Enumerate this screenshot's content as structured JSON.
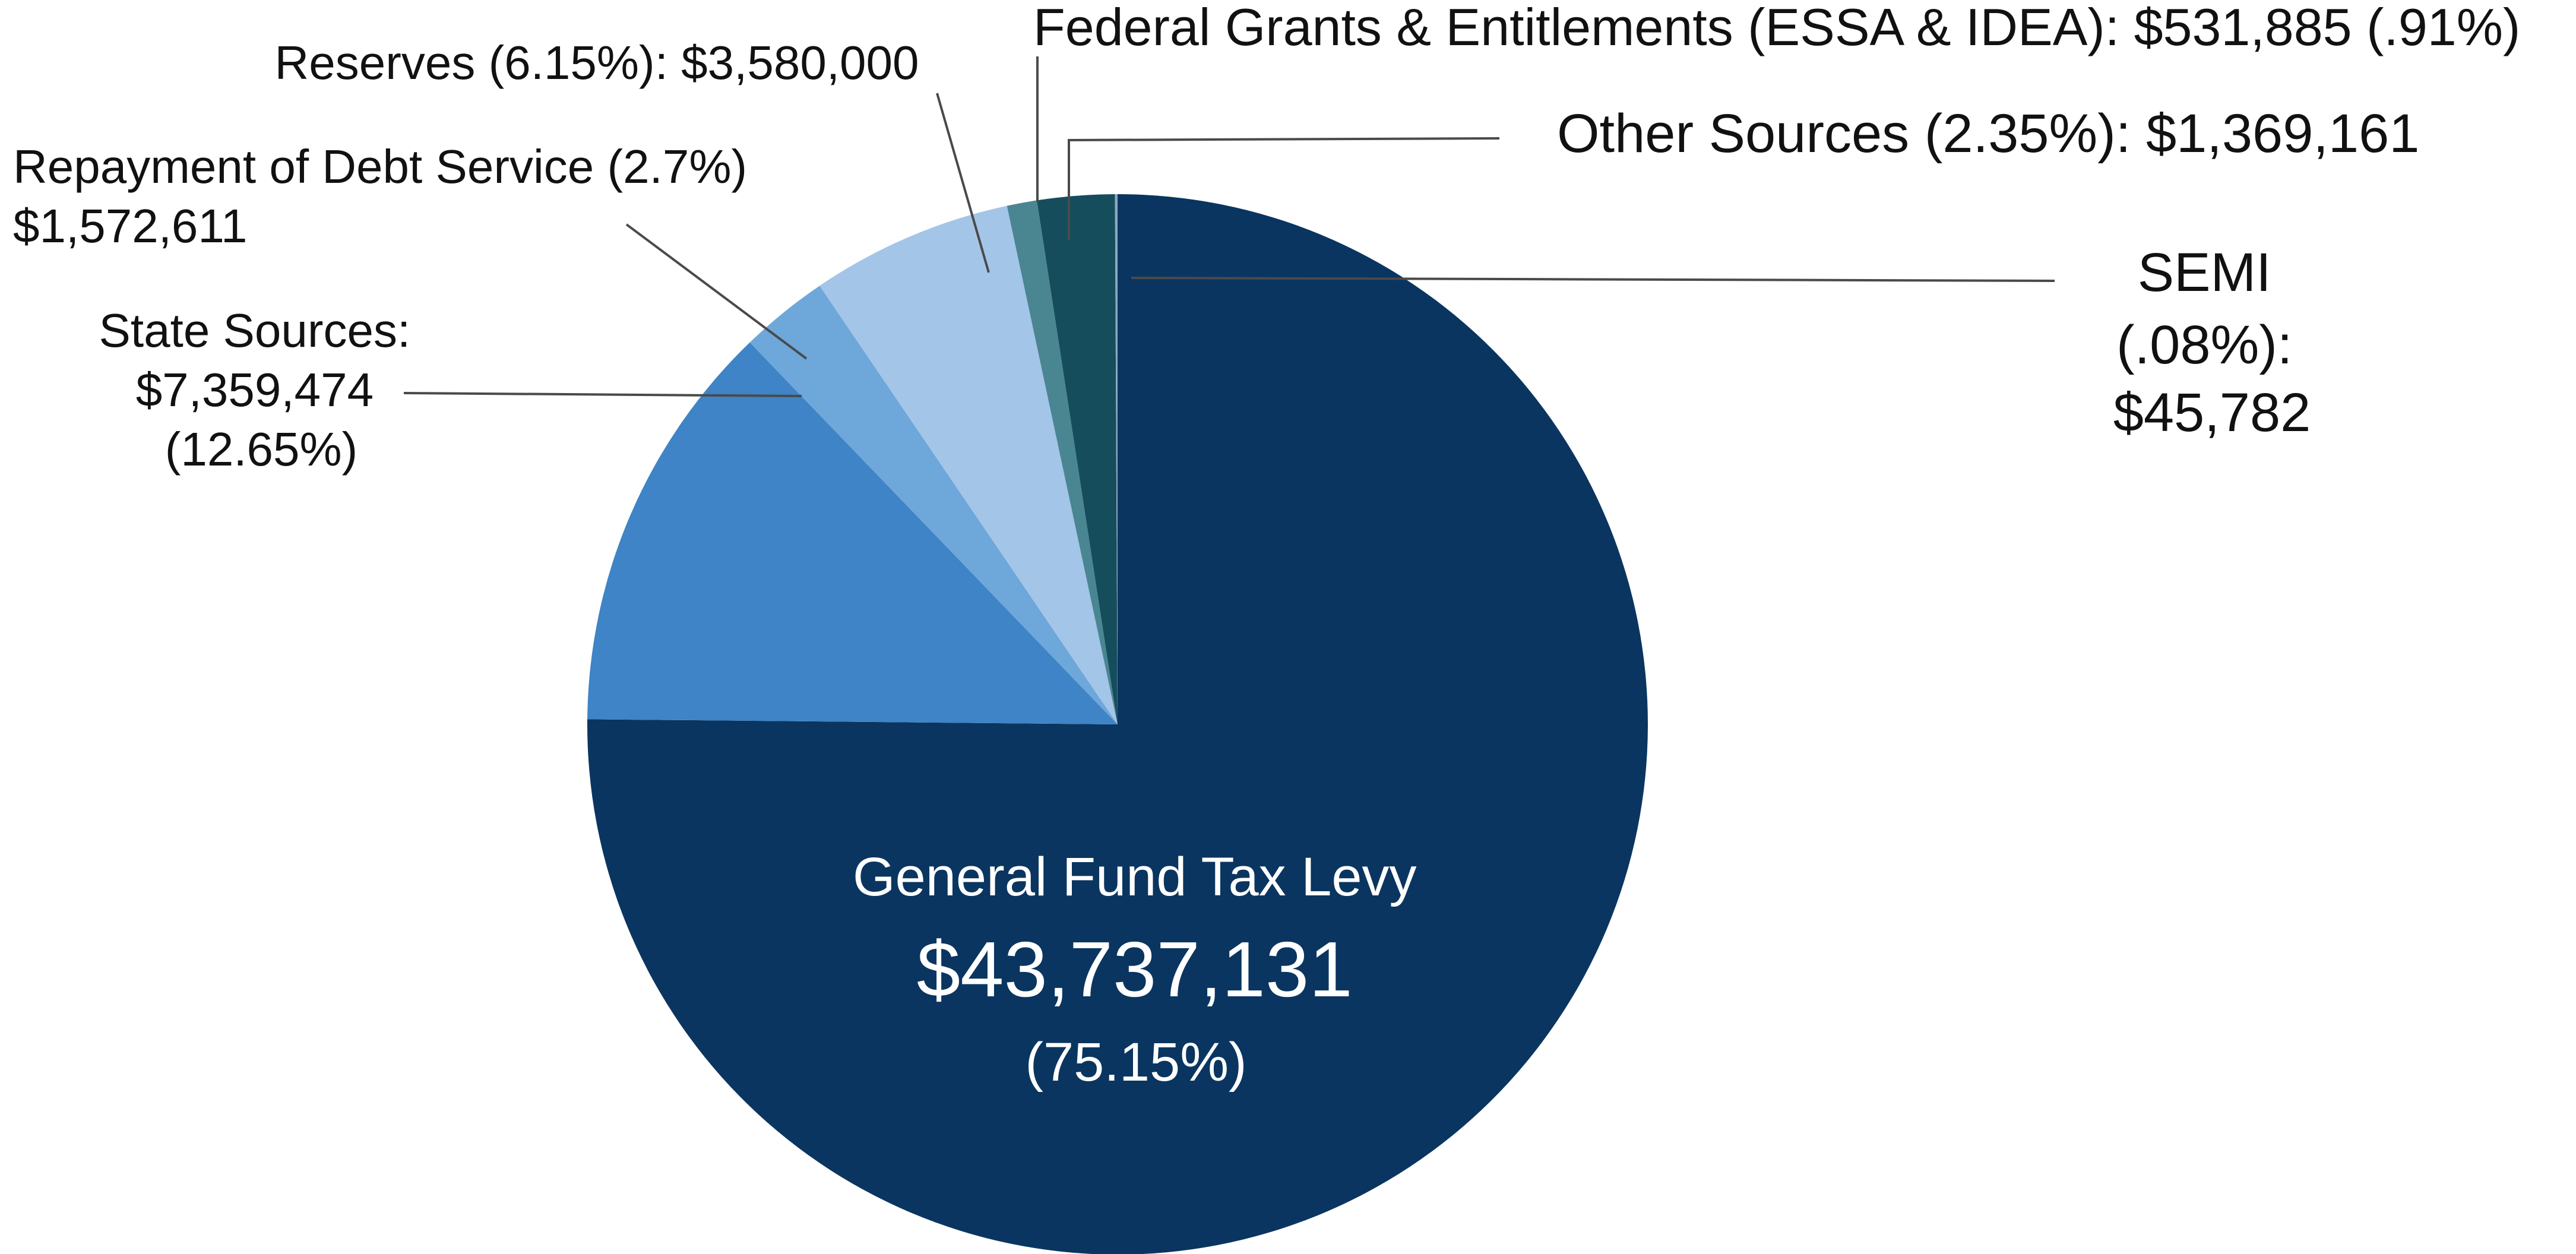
{
  "chart_data": {
    "type": "pie",
    "title": "",
    "start_direction": "12 o'clock, clockwise",
    "slices": [
      {
        "name": "General Fund Tax Levy",
        "value": 43737131,
        "percent": 75.15,
        "color": "#0a3560",
        "label_lines": [
          "General Fund Tax Levy",
          "$43,737,131",
          "(75.15%)"
        ]
      },
      {
        "name": "State Sources",
        "value": 7359474,
        "percent": 12.65,
        "color": "#3e84c6",
        "label_lines": [
          "State Sources:",
          "$7,359,474",
          "(12.65%)"
        ]
      },
      {
        "name": "Repayment of Debt Service",
        "value": 1572611,
        "percent": 2.7,
        "color": "#6ea7da",
        "label_lines": [
          "Repayment of Debt Service (2.7%)",
          "$1,572,611"
        ]
      },
      {
        "name": "Reserves",
        "value": 3580000,
        "percent": 6.15,
        "color": "#a3c5e8",
        "label_lines": [
          "Reserves (6.15%): $3,580,000"
        ]
      },
      {
        "name": "Federal Grants & Entitlements (ESSA & IDEA)",
        "value": 531885,
        "percent": 0.91,
        "color": "#4a8592",
        "label_lines": [
          "Federal Grants & Entitlements (ESSA & IDEA): $531,885 (.91%)"
        ]
      },
      {
        "name": "Other Sources",
        "value": 1369161,
        "percent": 2.35,
        "color": "#154d5c",
        "label_lines": [
          "Other Sources (2.35%): $1,369,161"
        ]
      },
      {
        "name": "SEMI",
        "value": 45782,
        "percent": 0.08,
        "color": "#8ba8bf",
        "label_lines": [
          "SEMI",
          "(.08%):",
          "$45,782"
        ]
      }
    ]
  }
}
